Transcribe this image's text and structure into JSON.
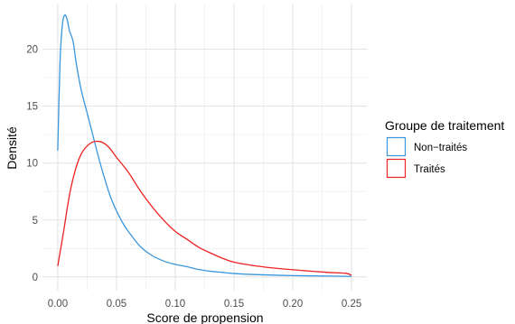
{
  "chart_data": {
    "type": "line",
    "title": "",
    "xlabel": "Score de propension",
    "ylabel": "Densité",
    "xlim": [
      -0.013,
      0.263
    ],
    "ylim": [
      -1.2,
      24.0
    ],
    "x_ticks": [
      0.0,
      0.05,
      0.1,
      0.15,
      0.2,
      0.25
    ],
    "x_tick_labels": [
      "0.00",
      "0.05",
      "0.10",
      "0.15",
      "0.20",
      "0.25"
    ],
    "y_ticks": [
      0,
      5,
      10,
      15,
      20
    ],
    "y_tick_labels": [
      "0",
      "5",
      "10",
      "15",
      "20"
    ],
    "grid": true,
    "legend": {
      "title": "Groupe de traitement",
      "position": "right"
    },
    "series": [
      {
        "name": "Non−traités",
        "color": "#3a96dc",
        "x": [
          0.0,
          0.002,
          0.004,
          0.006,
          0.008,
          0.01,
          0.013,
          0.016,
          0.02,
          0.025,
          0.03,
          0.035,
          0.04,
          0.045,
          0.05,
          0.055,
          0.06,
          0.07,
          0.08,
          0.09,
          0.1,
          0.11,
          0.12,
          0.13,
          0.14,
          0.15,
          0.17,
          0.2,
          0.23,
          0.25
        ],
        "y": [
          11.1,
          19.0,
          22.2,
          23.0,
          22.6,
          21.6,
          20.7,
          18.6,
          16.4,
          14.4,
          12.4,
          10.4,
          8.6,
          7.0,
          5.8,
          4.8,
          4.0,
          2.7,
          1.9,
          1.4,
          1.1,
          0.9,
          0.65,
          0.5,
          0.4,
          0.3,
          0.2,
          0.12,
          0.08,
          0.05
        ]
      },
      {
        "name": "Traités",
        "color": "#ee2222",
        "x": [
          0.0,
          0.005,
          0.01,
          0.015,
          0.02,
          0.025,
          0.03,
          0.035,
          0.04,
          0.045,
          0.05,
          0.06,
          0.07,
          0.08,
          0.09,
          0.1,
          0.11,
          0.12,
          0.13,
          0.14,
          0.15,
          0.17,
          0.19,
          0.21,
          0.23,
          0.245,
          0.25
        ],
        "y": [
          0.95,
          4.0,
          7.2,
          9.4,
          10.8,
          11.5,
          11.85,
          11.9,
          11.7,
          11.2,
          10.5,
          9.2,
          7.6,
          6.2,
          5.0,
          4.0,
          3.3,
          2.6,
          2.1,
          1.65,
          1.3,
          0.95,
          0.72,
          0.55,
          0.4,
          0.32,
          0.15
        ]
      }
    ]
  }
}
